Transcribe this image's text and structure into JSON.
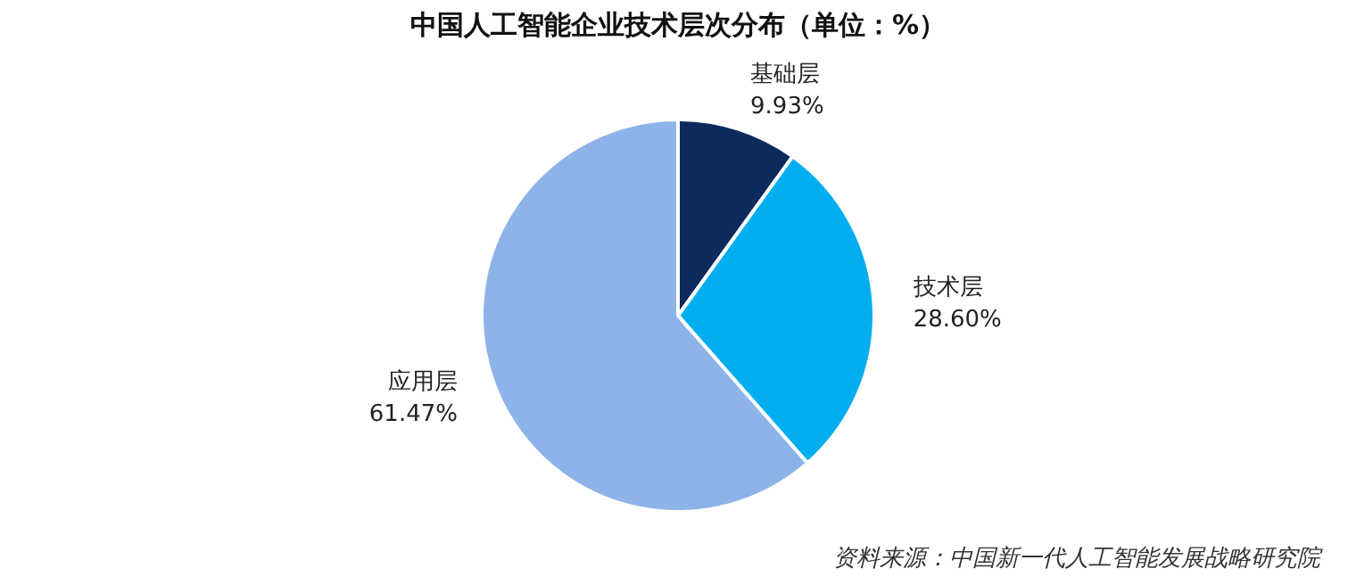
{
  "chart_data": {
    "type": "pie",
    "title": "中国人工智能企业技术层次分布（单位：%）",
    "categories": [
      "基础层",
      "技术层",
      "应用层"
    ],
    "values": [
      9.93,
      28.6,
      61.47
    ],
    "value_labels": [
      "9.93%",
      "28.60%",
      "61.47%"
    ],
    "colors": [
      "#0c2a5c",
      "#00aeef",
      "#8db3e9"
    ],
    "legend": false,
    "annotations": [
      "资料来源：中国新一代人工智能发展战略研究院"
    ]
  }
}
